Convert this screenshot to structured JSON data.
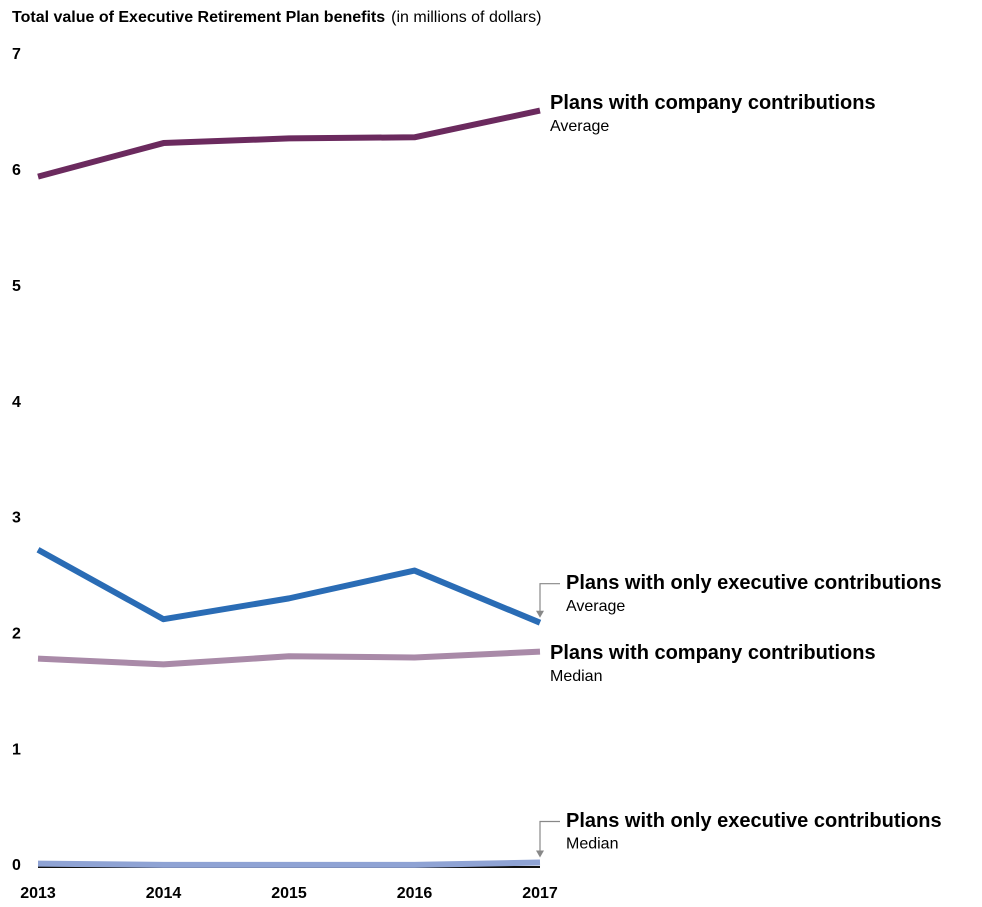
{
  "chart_data": {
    "type": "line",
    "title": "Total value of Executive Retirement Plan benefits",
    "subtitle": "(in millions of dollars)",
    "x": [
      "2013",
      "2014",
      "2015",
      "2016",
      "2017"
    ],
    "ylim": [
      0,
      7
    ],
    "yticks": [
      0,
      1,
      2,
      3,
      4,
      5,
      6,
      7
    ],
    "grid": false,
    "series": [
      {
        "name": "Plans with company contributions",
        "measure": "Average",
        "color": "#6b2a5e",
        "values": [
          5.95,
          6.24,
          6.28,
          6.29,
          6.52
        ]
      },
      {
        "name": "Plans with only executive contributions",
        "measure": "Average",
        "color": "#2a6cb5",
        "values": [
          2.73,
          2.13,
          2.31,
          2.55,
          2.1
        ]
      },
      {
        "name": "Plans with company contributions",
        "measure": "Median",
        "color": "#a98aa8",
        "values": [
          1.79,
          1.74,
          1.81,
          1.8,
          1.85
        ]
      },
      {
        "name": "Plans with only executive contributions",
        "measure": "Median",
        "color": "#8fa3d4",
        "values": [
          0.02,
          0.01,
          0.01,
          0.01,
          0.03
        ]
      }
    ]
  }
}
